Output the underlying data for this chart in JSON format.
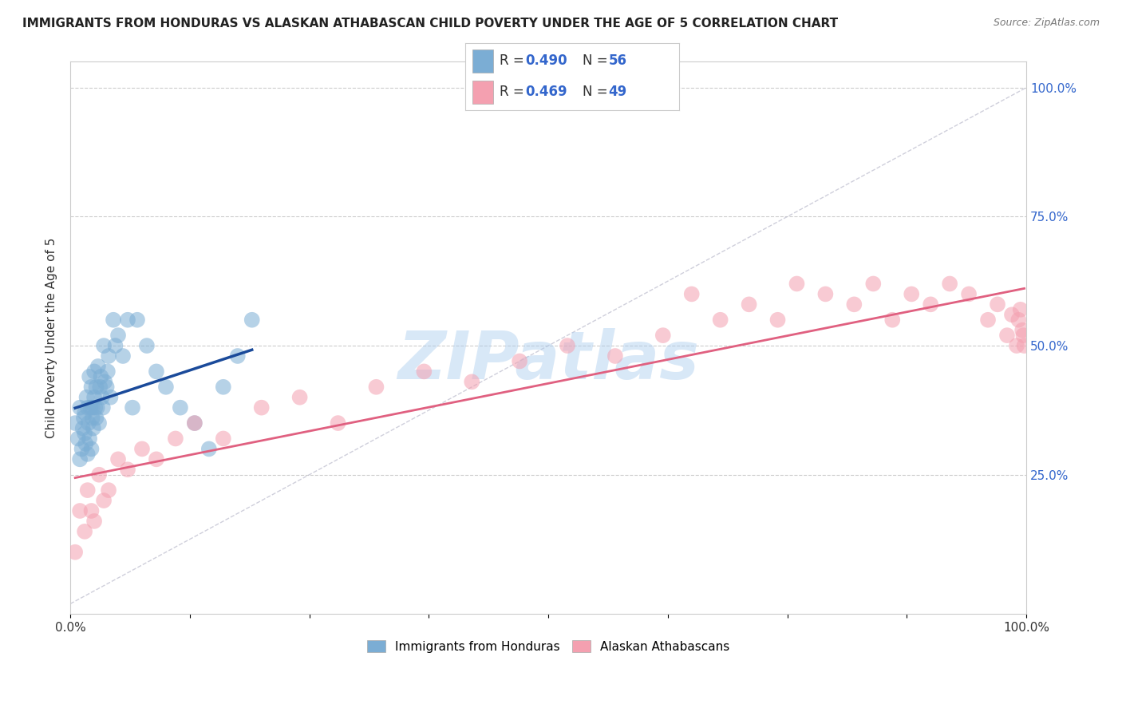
{
  "title": "IMMIGRANTS FROM HONDURAS VS ALASKAN ATHABASCAN CHILD POVERTY UNDER THE AGE OF 5 CORRELATION CHART",
  "source": "Source: ZipAtlas.com",
  "ylabel": "Child Poverty Under the Age of 5",
  "legend_label1": "Immigrants from Honduras",
  "legend_label2": "Alaskan Athabascans",
  "R1": 0.49,
  "N1": 56,
  "R2": 0.469,
  "N2": 49,
  "color_blue": "#7BADD4",
  "color_pink": "#F4A0B0",
  "color_blue_line": "#1A4A9A",
  "color_pink_line": "#E06080",
  "color_diag": "#BBBBCC",
  "watermark": "ZIPatlas",
  "watermark_color": "#AACCEE",
  "blue_x": [
    0.005,
    0.008,
    0.01,
    0.01,
    0.012,
    0.013,
    0.014,
    0.015,
    0.015,
    0.016,
    0.017,
    0.018,
    0.018,
    0.019,
    0.02,
    0.02,
    0.021,
    0.022,
    0.022,
    0.023,
    0.023,
    0.024,
    0.025,
    0.025,
    0.026,
    0.027,
    0.027,
    0.028,
    0.029,
    0.03,
    0.031,
    0.032,
    0.033,
    0.034,
    0.035,
    0.036,
    0.038,
    0.039,
    0.04,
    0.042,
    0.045,
    0.047,
    0.05,
    0.055,
    0.06,
    0.065,
    0.07,
    0.08,
    0.09,
    0.1,
    0.115,
    0.13,
    0.145,
    0.16,
    0.175,
    0.19
  ],
  "blue_y": [
    0.35,
    0.32,
    0.28,
    0.38,
    0.3,
    0.34,
    0.36,
    0.33,
    0.37,
    0.31,
    0.4,
    0.29,
    0.38,
    0.35,
    0.32,
    0.44,
    0.38,
    0.3,
    0.42,
    0.36,
    0.38,
    0.34,
    0.4,
    0.45,
    0.38,
    0.36,
    0.42,
    0.38,
    0.46,
    0.35,
    0.42,
    0.44,
    0.4,
    0.38,
    0.5,
    0.43,
    0.42,
    0.45,
    0.48,
    0.4,
    0.55,
    0.5,
    0.52,
    0.48,
    0.55,
    0.38,
    0.55,
    0.5,
    0.45,
    0.42,
    0.38,
    0.35,
    0.3,
    0.42,
    0.48,
    0.55
  ],
  "pink_x": [
    0.005,
    0.01,
    0.015,
    0.018,
    0.022,
    0.025,
    0.03,
    0.035,
    0.04,
    0.05,
    0.06,
    0.075,
    0.09,
    0.11,
    0.13,
    0.16,
    0.2,
    0.24,
    0.28,
    0.32,
    0.37,
    0.42,
    0.47,
    0.52,
    0.57,
    0.62,
    0.65,
    0.68,
    0.71,
    0.74,
    0.76,
    0.79,
    0.82,
    0.84,
    0.86,
    0.88,
    0.9,
    0.92,
    0.94,
    0.96,
    0.97,
    0.98,
    0.985,
    0.99,
    0.992,
    0.994,
    0.996,
    0.997,
    0.998
  ],
  "pink_y": [
    0.1,
    0.18,
    0.14,
    0.22,
    0.18,
    0.16,
    0.25,
    0.2,
    0.22,
    0.28,
    0.26,
    0.3,
    0.28,
    0.32,
    0.35,
    0.32,
    0.38,
    0.4,
    0.35,
    0.42,
    0.45,
    0.43,
    0.47,
    0.5,
    0.48,
    0.52,
    0.6,
    0.55,
    0.58,
    0.55,
    0.62,
    0.6,
    0.58,
    0.62,
    0.55,
    0.6,
    0.58,
    0.62,
    0.6,
    0.55,
    0.58,
    0.52,
    0.56,
    0.5,
    0.55,
    0.57,
    0.53,
    0.52,
    0.5
  ],
  "xlim": [
    0.0,
    1.0
  ],
  "ylim": [
    -0.02,
    1.05
  ],
  "ytick_positions": [
    0.25,
    0.5,
    0.75,
    1.0
  ],
  "ytick_labels": [
    "25.0%",
    "50.0%",
    "75.0%",
    "100.0%"
  ],
  "xtick_positions": [
    0.0,
    0.125,
    0.25,
    0.375,
    0.5,
    0.625,
    0.75,
    0.875,
    1.0
  ],
  "xtick_label_show": [
    true,
    false,
    false,
    false,
    false,
    false,
    false,
    false,
    true
  ],
  "xtick_label_values": [
    "0.0%",
    "",
    "",
    "",
    "",
    "",
    "",
    "",
    "100.0%"
  ]
}
